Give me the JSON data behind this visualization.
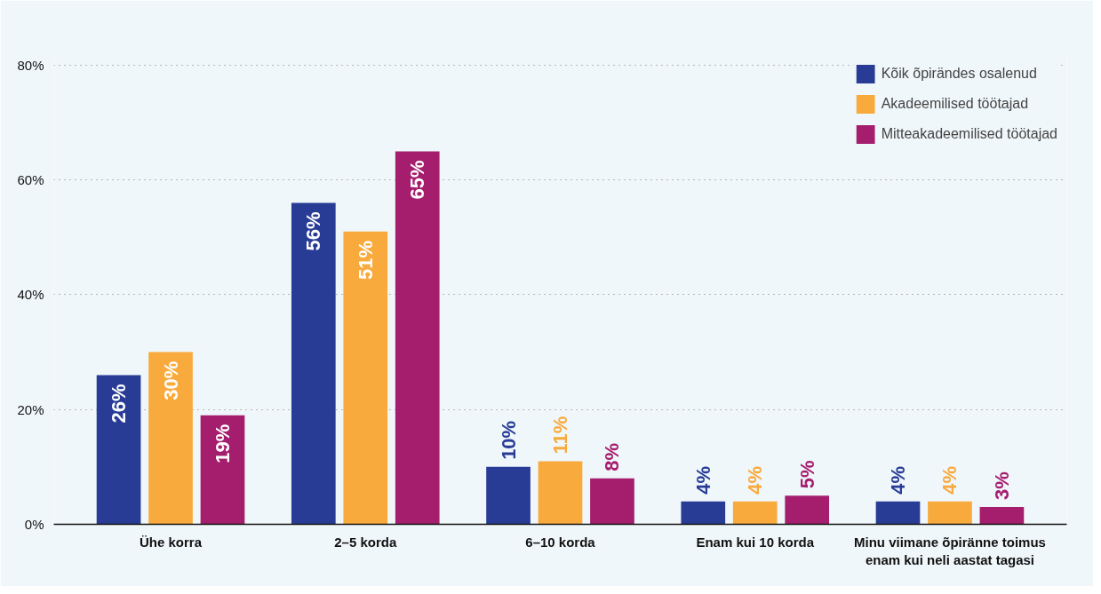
{
  "chart_data": {
    "type": "bar",
    "categories": [
      "Ühe korra",
      "2–5 korda",
      "6–10 korda",
      "Enam kui 10 korda",
      "Minu viimane õpiränne toimus\nenam kui neli aastat tagasi"
    ],
    "series": [
      {
        "name": "Kõik õpirändes osalenud",
        "color": "#283c96",
        "values": [
          26,
          56,
          10,
          4,
          4
        ],
        "value_labels": [
          "26%",
          "56%",
          "10%",
          "4%",
          "4%"
        ]
      },
      {
        "name": "Akadeemilised töötajad",
        "color": "#f9aa3c",
        "values": [
          30,
          51,
          11,
          4,
          4
        ],
        "value_labels": [
          "30%",
          "51%",
          "11%",
          "4%",
          "4%"
        ]
      },
      {
        "name": "Mitteakadeemilised töötajad",
        "color": "#a51e6e",
        "values": [
          19,
          65,
          8,
          5,
          3
        ],
        "value_labels": [
          "19%",
          "65%",
          "8%",
          "5%",
          "3%"
        ]
      }
    ],
    "ylim": [
      0,
      82
    ],
    "yticks": [
      {
        "value": 0,
        "label": "0%"
      },
      {
        "value": 20,
        "label": "20%"
      },
      {
        "value": 40,
        "label": "40%"
      },
      {
        "value": 60,
        "label": "60%"
      },
      {
        "value": 80,
        "label": "80%"
      }
    ],
    "grid": "y",
    "legend": "top right"
  }
}
